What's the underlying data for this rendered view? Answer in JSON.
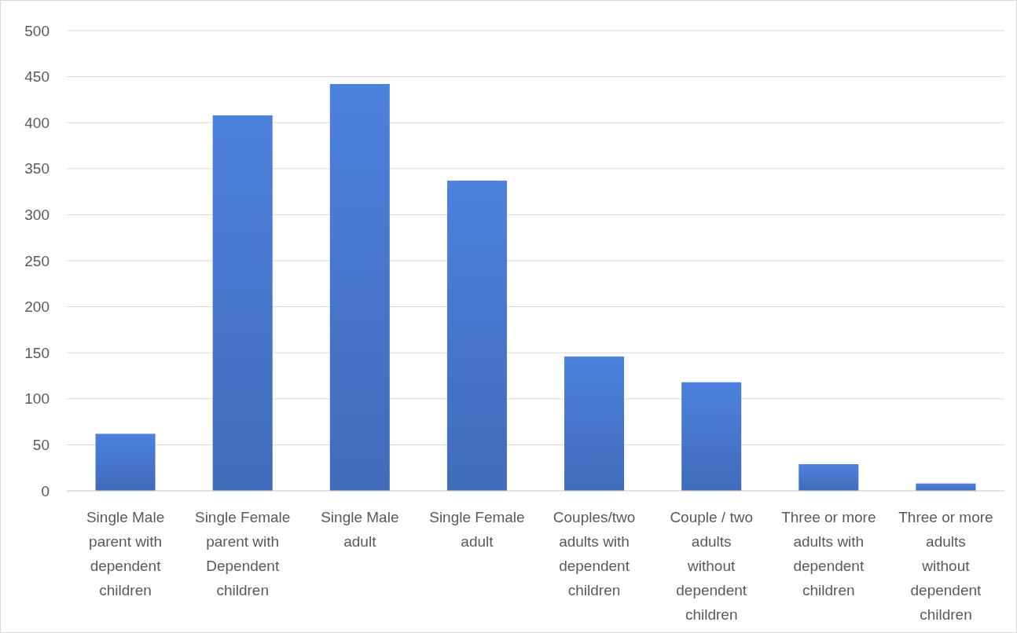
{
  "chart_data": {
    "type": "bar",
    "categories": [
      "Single Male parent with dependent children",
      "Single Female parent with Dependent children",
      "Single Male adult",
      "Single Female adult",
      "Couples/two adults with dependent children",
      "Couple / two adults without dependent children",
      "Three or more adults with dependent children",
      "Three or more adults without dependent children"
    ],
    "values": [
      62,
      408,
      442,
      337,
      146,
      118,
      29,
      8
    ],
    "color": "#4472c4",
    "ylim": [
      0,
      500
    ],
    "yticks": [
      0,
      50,
      100,
      150,
      200,
      250,
      300,
      350,
      400,
      450,
      500
    ],
    "grid": "y"
  }
}
